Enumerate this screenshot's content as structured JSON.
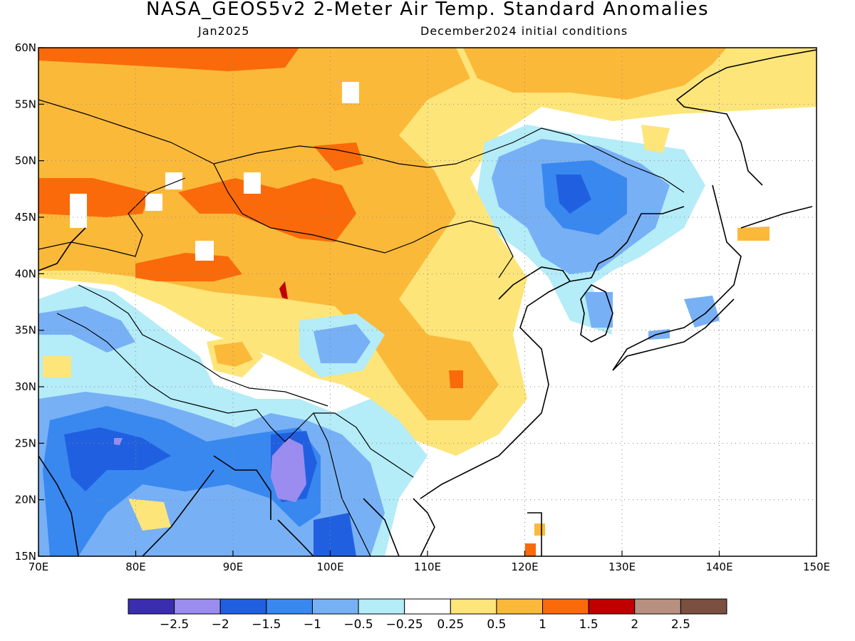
{
  "title": "NASA_GEOS5v2 2-Meter Air Temp. Standard Anomalies",
  "subtitle_left": "Jan2025",
  "subtitle_right": "December2024 initial conditions",
  "map": {
    "projection": "lat-lon",
    "lon_range": [
      70,
      150
    ],
    "lat_range": [
      15,
      60
    ],
    "x_ticks": [
      "70E",
      "80E",
      "90E",
      "100E",
      "110E",
      "120E",
      "130E",
      "140E",
      "150E"
    ],
    "y_ticks": [
      "15N",
      "20N",
      "25N",
      "30N",
      "35N",
      "40N",
      "45N",
      "50N",
      "55N",
      "60N"
    ],
    "grid": "dotted",
    "border_color": "#000000"
  },
  "colorbar": {
    "colors": [
      "#3a2db0",
      "#9b8cf0",
      "#2060e0",
      "#3888f0",
      "#78b0f5",
      "#b4ecf8",
      "#ffffff",
      "#fde57a",
      "#fbb93a",
      "#fa6a0a",
      "#c00000",
      "#b89080",
      "#7a5040"
    ],
    "labels": [
      "-2.5",
      "-2",
      "-1.5",
      "-1",
      "-0.5",
      "-0.25",
      "0.25",
      "0.5",
      "1",
      "1.5",
      "2",
      "2.5"
    ]
  }
}
